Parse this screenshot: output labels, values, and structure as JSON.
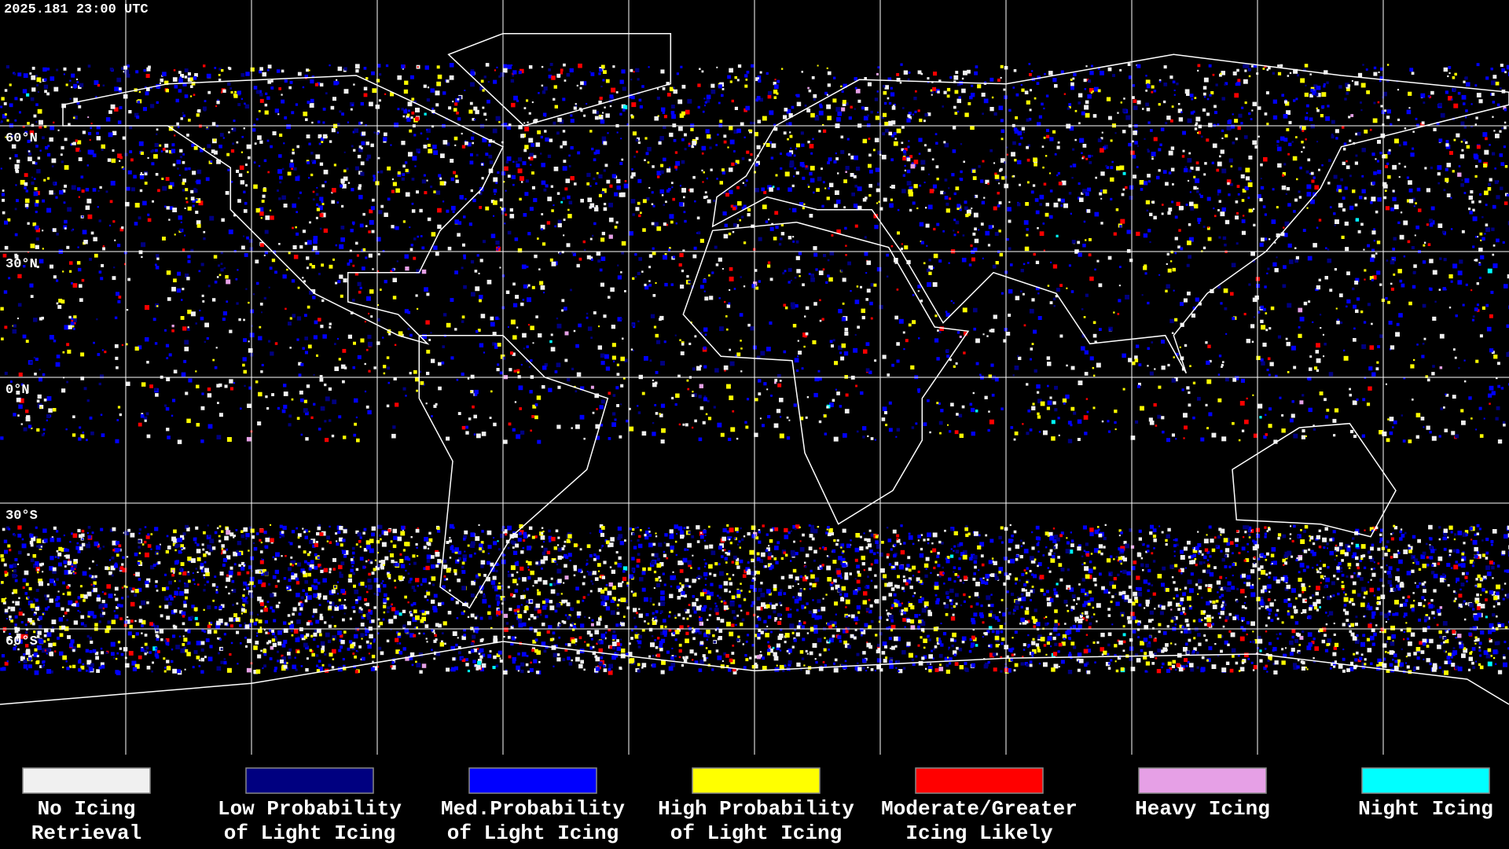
{
  "timestamp": "2025.181 23:00 UTC",
  "latitude_labels": [
    "60°N",
    "30°N",
    "0°N",
    "30°S",
    "60°S"
  ],
  "legend": [
    {
      "label_lines": [
        "No Icing",
        "Retrieval"
      ],
      "color": "#f0f0f0"
    },
    {
      "label_lines": [
        "Low Probability",
        "of Light Icing"
      ],
      "color": "#000080"
    },
    {
      "label_lines": [
        "Med.Probability",
        "of Light Icing"
      ],
      "color": "#0000ff"
    },
    {
      "label_lines": [
        "High Probability",
        "of Light Icing"
      ],
      "color": "#ffff00"
    },
    {
      "label_lines": [
        "Moderate/Greater",
        "Icing Likely"
      ],
      "color": "#ff0000"
    },
    {
      "label_lines": [
        "Heavy Icing"
      ],
      "color": "#e6a0e6"
    },
    {
      "label_lines": [
        "Night Icing"
      ],
      "color": "#00ffff"
    }
  ]
}
